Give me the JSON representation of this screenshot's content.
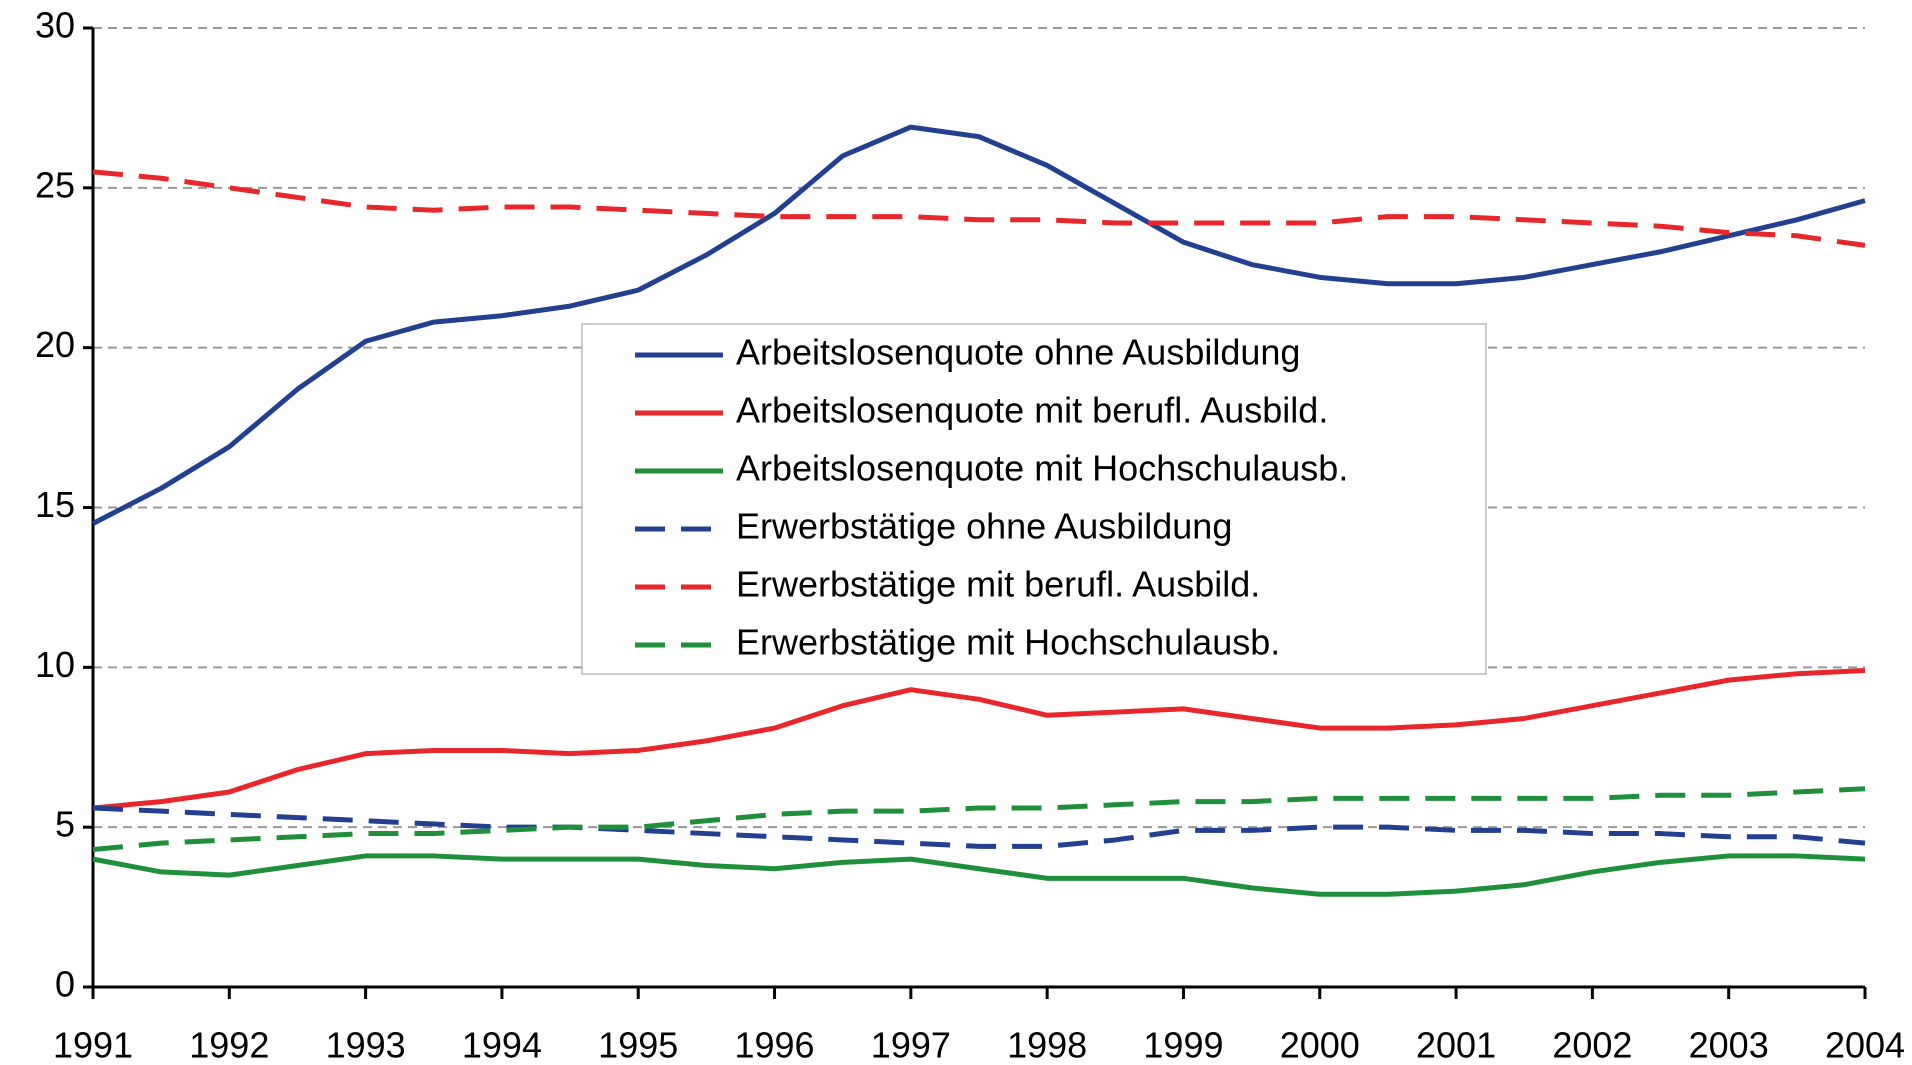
{
  "chart_data": {
    "type": "line",
    "x": [
      1991,
      1991.5,
      1992,
      1992.5,
      1993,
      1993.5,
      1994,
      1994.5,
      1995,
      1995.5,
      1996,
      1996.5,
      1997,
      1997.5,
      1998,
      1998.5,
      1999,
      1999.5,
      2000,
      2000.5,
      2001,
      2001.5,
      2002,
      2002.5,
      2003,
      2003.5,
      2004
    ],
    "series": [
      {
        "name": "Arbeitslosenquote ohne Ausbildung",
        "color": "#233f8f",
        "style": "solid",
        "values": [
          14.5,
          15.6,
          16.9,
          18.7,
          20.2,
          20.8,
          21.0,
          21.3,
          21.8,
          22.9,
          24.2,
          26.0,
          26.9,
          26.6,
          25.7,
          24.5,
          23.3,
          22.6,
          22.2,
          22.0,
          22.0,
          22.2,
          22.6,
          23.0,
          23.5,
          24.0,
          24.6
        ]
      },
      {
        "name": "Arbeitslosenquote mit berufl. Ausbild.",
        "color": "#e8272b",
        "style": "solid",
        "values": [
          5.6,
          5.8,
          6.1,
          6.8,
          7.3,
          7.4,
          7.4,
          7.3,
          7.4,
          7.7,
          8.1,
          8.8,
          9.3,
          9.0,
          8.5,
          8.6,
          8.7,
          8.4,
          8.1,
          8.1,
          8.2,
          8.4,
          8.8,
          9.2,
          9.6,
          9.8,
          9.9
        ]
      },
      {
        "name": "Arbeitslosenquote mit Hochschulausb.",
        "color": "#1f8f3a",
        "style": "solid",
        "values": [
          4.0,
          3.6,
          3.5,
          3.8,
          4.1,
          4.1,
          4.0,
          4.0,
          4.0,
          3.8,
          3.7,
          3.9,
          4.0,
          3.7,
          3.4,
          3.4,
          3.4,
          3.1,
          2.9,
          2.9,
          3.0,
          3.2,
          3.6,
          3.9,
          4.1,
          4.1,
          4.0
        ]
      },
      {
        "name": "Erwerbstätige ohne Ausbildung",
        "color": "#233f8f",
        "style": "dashed",
        "values": [
          5.6,
          5.5,
          5.4,
          5.3,
          5.2,
          5.1,
          5.0,
          5.0,
          4.9,
          4.8,
          4.7,
          4.6,
          4.5,
          4.4,
          4.4,
          4.6,
          4.9,
          4.9,
          5.0,
          5.0,
          4.9,
          4.9,
          4.8,
          4.8,
          4.7,
          4.7,
          4.5
        ]
      },
      {
        "name": "Erwerbstätige mit berufl. Ausbild.",
        "color": "#e8272b",
        "style": "dashed",
        "values": [
          25.5,
          25.3,
          25.0,
          24.7,
          24.4,
          24.3,
          24.4,
          24.4,
          24.3,
          24.2,
          24.1,
          24.1,
          24.1,
          24.0,
          24.0,
          23.9,
          23.9,
          23.9,
          23.9,
          24.1,
          24.1,
          24.0,
          23.9,
          23.8,
          23.6,
          23.5,
          23.2
        ]
      },
      {
        "name": "Erwerbstätige mit Hochschulausb.",
        "color": "#1f8f3a",
        "style": "dashed",
        "values": [
          4.3,
          4.5,
          4.6,
          4.7,
          4.8,
          4.8,
          4.9,
          5.0,
          5.0,
          5.2,
          5.4,
          5.5,
          5.5,
          5.6,
          5.6,
          5.7,
          5.8,
          5.8,
          5.9,
          5.9,
          5.9,
          5.9,
          5.9,
          6.0,
          6.0,
          6.1,
          6.2
        ]
      }
    ],
    "xlim": [
      1991,
      2004
    ],
    "xticks": [
      1991,
      1992,
      1993,
      1994,
      1995,
      1996,
      1997,
      1998,
      1999,
      2000,
      2001,
      2002,
      2003,
      2004
    ],
    "ylim": [
      0,
      30
    ],
    "yticks": [
      0,
      5,
      10,
      15,
      20,
      25,
      30
    ],
    "grid": true,
    "legend": "center"
  }
}
